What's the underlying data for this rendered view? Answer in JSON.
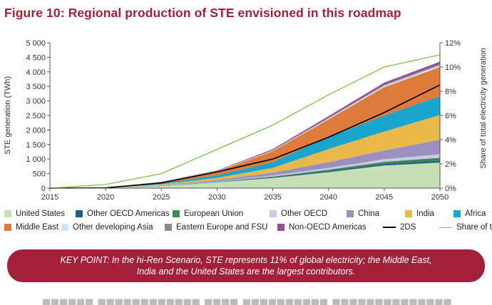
{
  "figure": {
    "title": "Figure 10: Regional production of STE envisioned in this roadmap"
  },
  "keypoint": {
    "line1": "KEY POINT: In the hi-Ren Scenario, STE represents 11% of global electricity; the Middle East,",
    "line2": "India and the United States are the largest contributors."
  },
  "chart_data": {
    "type": "area",
    "stacked": true,
    "x": [
      2015,
      2020,
      2025,
      2030,
      2035,
      2040,
      2045,
      2050
    ],
    "xlabel": "",
    "ylabel": "STE generation (TWh)",
    "ylim": [
      0,
      5000
    ],
    "yticks": [
      "0",
      "500",
      "1 000",
      "1 500",
      "2 000",
      "2 500",
      "3 000",
      "3 500",
      "4 000",
      "4 500",
      "5 000"
    ],
    "y2label": "Share of total electricity generation",
    "y2lim": [
      0,
      12
    ],
    "y2ticks": [
      "0%",
      "2%",
      "4%",
      "6%",
      "8%",
      "10%",
      "12%"
    ],
    "grid": false,
    "legend_position": "bottom",
    "series": [
      {
        "name": "United States",
        "color": "#c5e0b4",
        "values": [
          0,
          5,
          70,
          200,
          350,
          550,
          780,
          880
        ]
      },
      {
        "name": "Other OECD Americas",
        "color": "#1f5f8b",
        "values": [
          0,
          0,
          5,
          12,
          25,
          40,
          55,
          65
        ]
      },
      {
        "name": "European Union",
        "color": "#3a8a4e",
        "values": [
          0,
          0,
          5,
          12,
          25,
          45,
          70,
          100
        ]
      },
      {
        "name": "Other OECD",
        "color": "#c9c9e6",
        "values": [
          0,
          0,
          5,
          15,
          35,
          60,
          90,
          120
        ]
      },
      {
        "name": "China",
        "color": "#9a8fbf",
        "values": [
          0,
          0,
          15,
          45,
          100,
          200,
          300,
          500
        ]
      },
      {
        "name": "India",
        "color": "#e8b94a",
        "values": [
          0,
          0,
          30,
          70,
          160,
          450,
          650,
          850
        ]
      },
      {
        "name": "Africa",
        "color": "#19a5cc",
        "values": [
          0,
          0,
          30,
          90,
          200,
          420,
          550,
          650
        ]
      },
      {
        "name": "Middle East",
        "color": "#de7a3c",
        "values": [
          0,
          5,
          50,
          130,
          380,
          600,
          980,
          1000
        ]
      },
      {
        "name": "Other developing Asia",
        "color": "#cfe7f2",
        "values": [
          0,
          0,
          3,
          10,
          20,
          35,
          50,
          60
        ]
      },
      {
        "name": "Eastern Europe and FSU",
        "color": "#8a8a8a",
        "values": [
          0,
          0,
          3,
          8,
          15,
          25,
          35,
          45
        ]
      },
      {
        "name": "Non-OECD Americas",
        "color": "#9a4d8c",
        "values": [
          0,
          0,
          5,
          15,
          30,
          50,
          70,
          80
        ]
      }
    ],
    "lines": [
      {
        "name": "2DS",
        "color": "#000000",
        "axis": "left",
        "values": [
          0,
          10,
          180,
          560,
          1000,
          1750,
          2600,
          3550
        ]
      },
      {
        "name": "Share of total",
        "color": "#77c24a",
        "axis": "right",
        "values": [
          0,
          0.3,
          1.2,
          3.2,
          5.2,
          7.7,
          10.0,
          11.0
        ]
      }
    ]
  }
}
